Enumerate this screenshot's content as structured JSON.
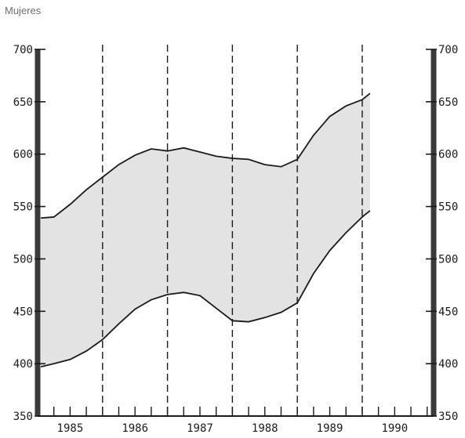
{
  "chart_data": {
    "type": "area",
    "title": "Mujeres",
    "xlabel": "",
    "ylabel": "",
    "ylim": [
      350,
      700
    ],
    "yticks": [
      350,
      400,
      450,
      500,
      550,
      600,
      650,
      700
    ],
    "ytick_labels": [
      "350",
      "400",
      "450",
      "500",
      "550",
      "600",
      "650",
      "700"
    ],
    "xlim": [
      1984.5,
      1990.6
    ],
    "year_labels": [
      {
        "year": 1985,
        "label": "1985"
      },
      {
        "year": 1986,
        "label": "1986"
      },
      {
        "year": 1987,
        "label": "1987"
      },
      {
        "year": 1988,
        "label": "1988"
      },
      {
        "year": 1989,
        "label": "1989"
      },
      {
        "year": 1990,
        "label": "1990"
      }
    ],
    "dashed_lines_x": [
      1985.5,
      1986.5,
      1987.5,
      1988.5,
      1989.5
    ],
    "grid": false,
    "series": [
      {
        "role": "upper",
        "x": [
          1984.55,
          1984.75,
          1985.0,
          1985.25,
          1985.5,
          1985.75,
          1986.0,
          1986.25,
          1986.5,
          1986.75,
          1987.0,
          1987.25,
          1987.5,
          1987.75,
          1988.0,
          1988.25,
          1988.5,
          1988.75,
          1989.0,
          1989.25,
          1989.5,
          1989.62
        ],
        "values": [
          539,
          540,
          552,
          566,
          578,
          590,
          599,
          605,
          603,
          606,
          602,
          598,
          596,
          595,
          590,
          588,
          595,
          618,
          636,
          646,
          652,
          658
        ]
      },
      {
        "role": "lower",
        "x": [
          1984.55,
          1984.75,
          1985.0,
          1985.25,
          1985.5,
          1985.75,
          1986.0,
          1986.25,
          1986.5,
          1986.75,
          1987.0,
          1987.25,
          1987.5,
          1987.75,
          1988.0,
          1988.25,
          1988.5,
          1988.75,
          1989.0,
          1989.25,
          1989.5,
          1989.62
        ],
        "values": [
          397,
          400,
          404,
          412,
          423,
          438,
          452,
          461,
          466,
          468,
          465,
          453,
          441,
          440,
          444,
          449,
          458,
          486,
          508,
          525,
          540,
          546
        ]
      }
    ],
    "colors": {
      "band": "#e4e3e3",
      "line": "#1a1a1a"
    }
  }
}
